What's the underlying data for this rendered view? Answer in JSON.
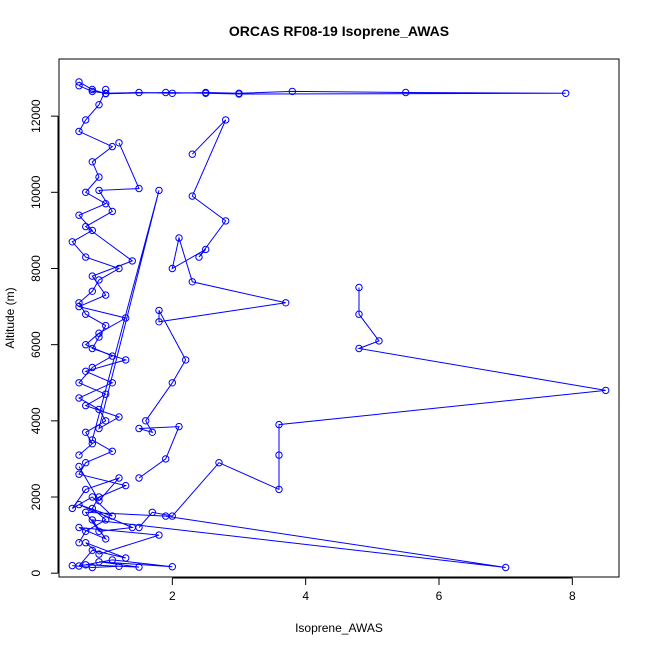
{
  "chart_data": {
    "type": "scatter",
    "title": "ORCAS RF08-19 Isoprene_AWAS",
    "xlabel": "Isoprene_AWAS",
    "ylabel": "Altitude (m)",
    "xlim": [
      0.3,
      8.7
    ],
    "ylim": [
      -100,
      13500
    ],
    "xticks": [
      2,
      4,
      6,
      8
    ],
    "yticks": [
      0,
      2000,
      4000,
      6000,
      8000,
      10000,
      12000
    ],
    "grid": false,
    "color": "#0000ff",
    "series": [
      {
        "x": [
          0.5,
          0.8,
          1.2,
          0.7,
          1.5,
          0.9,
          2.0,
          1.1,
          0.6,
          0.8,
          1.3,
          0.7,
          0.9,
          1.8,
          0.6,
          1.0,
          0.8,
          7.0,
          1.9,
          0.7,
          0.9,
          1.4,
          0.6,
          1.1,
          0.8,
          0.5,
          0.7,
          1.2,
          0.9,
          0.6
        ],
        "y": [
          200,
          150,
          180,
          220,
          160,
          300,
          170,
          350,
          190,
          600,
          400,
          800,
          500,
          1000,
          1200,
          900,
          1400,
          150,
          1500,
          1600,
          1100,
          1200,
          1800,
          1500,
          2000,
          1700,
          2200,
          2500,
          1900,
          2800
        ]
      },
      {
        "x": [
          0.6,
          0.8,
          0.7,
          1.0,
          0.9,
          0.6,
          1.1,
          0.7,
          1.3,
          0.8,
          0.9,
          1.0,
          0.7,
          0.6,
          0.8,
          0.9,
          1.2,
          0.7,
          0.5,
          0.8,
          0.6,
          1.0,
          0.7,
          0.9,
          0.8,
          1.1,
          0.6,
          0.7,
          0.9,
          1.0
        ],
        "y": [
          3100,
          3400,
          3700,
          4000,
          4300,
          4600,
          5000,
          5300,
          5600,
          5900,
          6200,
          6500,
          6800,
          7100,
          7400,
          7700,
          8000,
          8300,
          8700,
          9000,
          9400,
          9700,
          10000,
          10400,
          10800,
          11200,
          11600,
          11900,
          12300,
          12700
        ]
      },
      {
        "x": [
          0.6,
          0.8,
          1.0,
          1.5,
          2.0,
          2.5,
          3.0,
          3.8,
          5.5,
          7.9,
          3.0,
          2.5,
          1.9,
          1.0,
          0.8,
          0.6
        ],
        "y": [
          12800,
          12650,
          12600,
          12620,
          12600,
          12620,
          12600,
          12650,
          12620,
          12600,
          12580,
          12600,
          12620,
          12590,
          12700,
          12900
        ]
      },
      {
        "x": [
          2.3,
          2.8,
          2.3,
          2.8,
          2.4,
          2.5,
          2.0,
          2.1,
          2.3,
          3.7,
          1.8,
          1.8,
          2.2,
          2.0,
          1.6,
          1.7,
          1.5,
          2.1,
          1.9,
          1.5
        ],
        "y": [
          11000,
          11900,
          9900,
          9250,
          8300,
          8500,
          8000,
          8800,
          7650,
          7100,
          6600,
          6900,
          5600,
          5000,
          4000,
          3700,
          3800,
          3850,
          3000,
          2500
        ]
      },
      {
        "x": [
          4.8,
          4.8,
          5.1,
          4.8,
          8.5,
          3.6,
          3.6,
          3.6,
          2.7,
          2.0,
          1.7,
          1.5
        ],
        "y": [
          7500,
          6800,
          6100,
          5900,
          4800,
          3900,
          3100,
          2200,
          2900,
          1500,
          1600,
          1200
        ]
      },
      {
        "x": [
          1.2,
          1.5,
          0.9,
          1.1,
          0.7,
          1.4,
          0.8,
          1.0,
          0.6,
          1.3,
          0.9,
          0.7,
          1.1,
          0.8,
          0.6,
          1.0,
          0.7,
          1.2,
          0.9,
          1.8,
          0.8,
          1.1,
          0.7,
          0.6,
          1.3,
          0.9,
          0.8,
          1.0,
          0.7,
          0.6
        ],
        "y": [
          11300,
          10100,
          10050,
          9500,
          9100,
          8200,
          7800,
          7300,
          7000,
          6700,
          6300,
          6000,
          5700,
          5400,
          5000,
          4700,
          4400,
          4100,
          3800,
          10050,
          3500,
          3200,
          2900,
          2600,
          2300,
          2000,
          1700,
          1400,
          1100,
          800
        ]
      }
    ]
  }
}
